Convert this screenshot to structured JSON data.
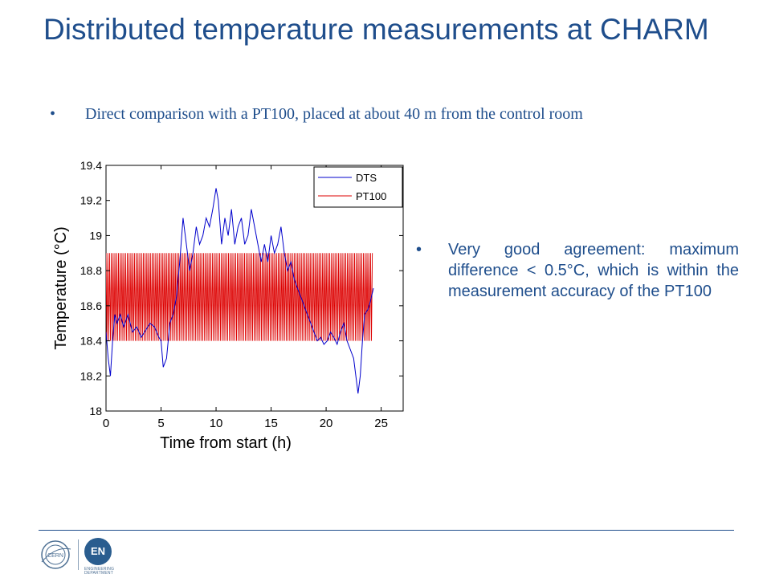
{
  "slide": {
    "title": "Distributed temperature measurements at CHARM",
    "bullet_top": "Direct comparison with a PT100, placed at about 40 m from the control room",
    "bullet_side": "Very good agreement: maximum difference < 0.5°C, which is within the measurement accuracy of the PT100",
    "bullet_symbol": "•"
  },
  "footer": {
    "logo_left_text": "CERN",
    "logo_right_text": "EN",
    "logo_right_line1": "ENGINEERING",
    "logo_right_line2": "DEPARTMENT"
  },
  "colors": {
    "title": "#1f4e8c",
    "dts": "#0000cc",
    "pt100": "#dd0000"
  },
  "chart_data": {
    "type": "line",
    "title": "",
    "xlabel": "Time from start (h)",
    "ylabel": "Temperature (°C)",
    "xlim": [
      0,
      27
    ],
    "ylim": [
      18,
      19.4
    ],
    "xticks": [
      0,
      5,
      10,
      15,
      20,
      25
    ],
    "yticks": [
      18,
      18.2,
      18.4,
      18.6,
      18.8,
      19,
      19.2,
      19.4
    ],
    "ytick_labels": [
      "18",
      "18.2",
      "18.4",
      "18.6",
      "18.8",
      "19",
      "19.2",
      "19.4"
    ],
    "grid": false,
    "legend": "top-right",
    "series": [
      {
        "name": "DTS",
        "color": "#0000cc",
        "x": [
          0,
          0.2,
          0.4,
          0.6,
          0.8,
          1.0,
          1.3,
          1.6,
          2.0,
          2.4,
          2.8,
          3.2,
          3.6,
          4.0,
          4.4,
          4.8,
          5.0,
          5.2,
          5.5,
          5.8,
          6.1,
          6.4,
          6.7,
          7.0,
          7.3,
          7.6,
          7.9,
          8.2,
          8.5,
          8.8,
          9.1,
          9.4,
          9.7,
          10.0,
          10.2,
          10.5,
          10.8,
          11.1,
          11.4,
          11.7,
          12.0,
          12.3,
          12.6,
          12.9,
          13.2,
          13.5,
          13.8,
          14.1,
          14.4,
          14.7,
          15.0,
          15.3,
          15.6,
          15.9,
          16.2,
          16.5,
          16.8,
          17.1,
          17.4,
          17.7,
          18.0,
          18.3,
          18.6,
          18.9,
          19.2,
          19.5,
          19.8,
          20.1,
          20.4,
          20.7,
          21.0,
          21.3,
          21.6,
          21.9,
          22.2,
          22.5,
          22.7,
          22.9,
          23.1,
          23.3,
          23.5,
          23.8,
          24.0,
          24.3
        ],
        "y": [
          18.45,
          18.3,
          18.2,
          18.4,
          18.55,
          18.5,
          18.55,
          18.48,
          18.55,
          18.45,
          18.48,
          18.42,
          18.46,
          18.5,
          18.48,
          18.42,
          18.4,
          18.25,
          18.3,
          18.5,
          18.55,
          18.65,
          18.85,
          19.1,
          18.95,
          18.8,
          18.9,
          19.05,
          18.95,
          19.0,
          19.1,
          19.05,
          19.15,
          19.27,
          19.2,
          18.95,
          19.1,
          19.0,
          19.15,
          18.95,
          19.05,
          19.1,
          18.95,
          19.0,
          19.15,
          19.05,
          18.95,
          18.85,
          18.95,
          18.85,
          19.0,
          18.9,
          18.95,
          19.05,
          18.9,
          18.8,
          18.85,
          18.75,
          18.7,
          18.65,
          18.6,
          18.55,
          18.5,
          18.45,
          18.4,
          18.42,
          18.38,
          18.4,
          18.45,
          18.42,
          18.38,
          18.45,
          18.5,
          18.4,
          18.35,
          18.3,
          18.2,
          18.1,
          18.2,
          18.4,
          18.55,
          18.58,
          18.62,
          18.7
        ]
      },
      {
        "name": "PT100",
        "color": "#dd0000",
        "x_start": 0,
        "x_end": 24.2,
        "cycles": 150,
        "ymin": 18.4,
        "ymax": 18.9
      }
    ]
  }
}
